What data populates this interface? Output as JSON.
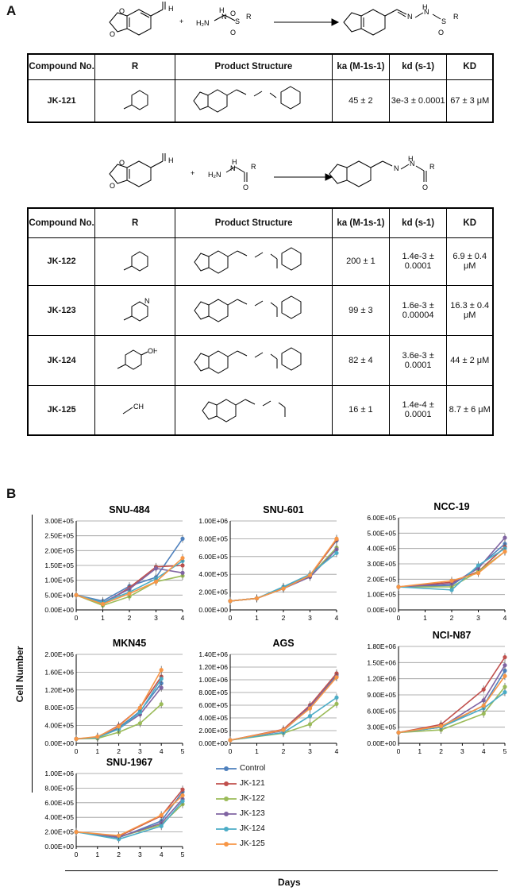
{
  "panel_a_label": "A",
  "panel_b_label": "B",
  "reaction1": {
    "reactant_aldehyde_label": "H",
    "reactant2_text": "H₂N",
    "r_label": "R",
    "plus": "+"
  },
  "reaction2": {
    "reactant_aldehyde_label": "H",
    "reactant2_text": "H₂N",
    "r_label": "R",
    "plus": "+"
  },
  "table_headers": {
    "compound": "Compound No.",
    "r": "R",
    "product": "Product Structure",
    "ka": "ka (M-1s-1)",
    "kd": "kd (s-1)",
    "KD": "KD"
  },
  "table1_rows": [
    {
      "id": "JK-121",
      "r": "phenyl",
      "ka": "45 ± 2",
      "kd": "3e-3 ± 0.0001",
      "KD": "67 ± 3 μM"
    }
  ],
  "table2_rows": [
    {
      "id": "JK-122",
      "r": "phenyl",
      "ka": "200 ± 1",
      "kd": "1.4e-3 ± 0.0001",
      "KD": "6.9 ± 0.4 μM"
    },
    {
      "id": "JK-123",
      "r": "pyridyl",
      "ka": "99 ± 3",
      "kd": "1.6e-3 ± 0.00004",
      "KD": "16.3 ± 0.4 μM"
    },
    {
      "id": "JK-124",
      "r": "hydroxyphenyl",
      "ka": "82 ± 4",
      "kd": "3.6e-3 ± 0.0001",
      "KD": "44 ± 2 μM"
    },
    {
      "id": "JK-125",
      "r": "methyl",
      "ka": "16 ± 1",
      "kd": "1.4e-4 ± 0.0001",
      "KD": "8.7 ± 6 μM"
    }
  ],
  "axis_titles": {
    "y": "Cell Number",
    "x": "Days"
  },
  "legend": [
    "Control",
    "JK-121",
    "JK-122",
    "JK-123",
    "JK-124",
    "JK-125"
  ],
  "colors": {
    "Control": "#4f81bd",
    "JK-121": "#c0504d",
    "JK-122": "#9bbb59",
    "JK-123": "#8064a2",
    "JK-124": "#4bacc6",
    "JK-125": "#f79646"
  },
  "chart_data": [
    {
      "type": "line",
      "title": "SNU-484",
      "x": [
        0,
        1,
        2,
        3,
        4
      ],
      "xlim": [
        0,
        4
      ],
      "ylim": [
        0,
        300000
      ],
      "yticks": [
        "0.00E+00",
        "5.00E+04",
        "1.00E+05",
        "1.50E+05",
        "2.00E+05",
        "2.50E+05",
        "3.00E+05"
      ],
      "xticks": [
        "0",
        "1",
        "2",
        "3",
        "4"
      ],
      "series": [
        {
          "name": "Control",
          "values": [
            50000,
            30000,
            80000,
            110000,
            240000
          ]
        },
        {
          "name": "JK-121",
          "values": [
            50000,
            20000,
            75000,
            145000,
            150000
          ]
        },
        {
          "name": "JK-122",
          "values": [
            50000,
            15000,
            45000,
            95000,
            115000
          ]
        },
        {
          "name": "JK-123",
          "values": [
            50000,
            25000,
            70000,
            140000,
            125000
          ]
        },
        {
          "name": "JK-124",
          "values": [
            50000,
            25000,
            60000,
            105000,
            165000
          ]
        },
        {
          "name": "JK-125",
          "values": [
            50000,
            20000,
            55000,
            95000,
            175000
          ]
        }
      ]
    },
    {
      "type": "line",
      "title": "SNU-601",
      "x": [
        0,
        1,
        2,
        3,
        4
      ],
      "xlim": [
        0,
        4
      ],
      "ylim": [
        0,
        1000000
      ],
      "yticks": [
        "0.00E+00",
        "2.00E+05",
        "4.00E+05",
        "6.00E+05",
        "8.00E+05",
        "1.00E+06"
      ],
      "xticks": [
        "0",
        "1",
        "2",
        "3",
        "4"
      ],
      "series": [
        {
          "name": "Control",
          "values": [
            100000,
            130000,
            250000,
            390000,
            780000
          ]
        },
        {
          "name": "JK-121",
          "values": [
            100000,
            130000,
            240000,
            380000,
            790000
          ]
        },
        {
          "name": "JK-122",
          "values": [
            100000,
            130000,
            240000,
            380000,
            700000
          ]
        },
        {
          "name": "JK-123",
          "values": [
            100000,
            130000,
            240000,
            370000,
            680000
          ]
        },
        {
          "name": "JK-124",
          "values": [
            100000,
            130000,
            260000,
            400000,
            640000
          ]
        },
        {
          "name": "JK-125",
          "values": [
            100000,
            130000,
            240000,
            390000,
            800000
          ]
        }
      ]
    },
    {
      "type": "line",
      "title": "NCC-19",
      "x": [
        0,
        2,
        3,
        4
      ],
      "xlim": [
        0,
        4
      ],
      "ylim": [
        0,
        600000
      ],
      "yticks": [
        "0.00E+00",
        "1.00E+05",
        "2.00E+05",
        "3.00E+05",
        "4.00E+05",
        "5.00E+05",
        "6.00E+05"
      ],
      "xticks": [
        "0",
        "1",
        "2",
        "3",
        "4"
      ],
      "series": [
        {
          "name": "Control",
          "values": [
            150000,
            160000,
            280000,
            430000
          ]
        },
        {
          "name": "JK-121",
          "values": [
            150000,
            180000,
            250000,
            410000
          ]
        },
        {
          "name": "JK-122",
          "values": [
            150000,
            150000,
            250000,
            380000
          ]
        },
        {
          "name": "JK-123",
          "values": [
            150000,
            170000,
            270000,
            470000
          ]
        },
        {
          "name": "JK-124",
          "values": [
            150000,
            130000,
            290000,
            400000
          ]
        },
        {
          "name": "JK-125",
          "values": [
            150000,
            190000,
            240000,
            380000
          ]
        }
      ]
    },
    {
      "type": "line",
      "title": "MKN45",
      "x": [
        0,
        1,
        2,
        3,
        4
      ],
      "xlim": [
        0,
        5
      ],
      "ylim": [
        0,
        2000000
      ],
      "yticks": [
        "0.00E+00",
        "4.00E+05",
        "8.00E+05",
        "1.20E+06",
        "1.60E+06",
        "2.00E+06"
      ],
      "xticks": [
        "0",
        "1",
        "2",
        "3",
        "4",
        "5"
      ],
      "series": [
        {
          "name": "Control",
          "values": [
            100000,
            130000,
            350000,
            720000,
            1350000
          ]
        },
        {
          "name": "JK-121",
          "values": [
            100000,
            140000,
            400000,
            800000,
            1500000
          ]
        },
        {
          "name": "JK-122",
          "values": [
            100000,
            110000,
            250000,
            450000,
            880000
          ]
        },
        {
          "name": "JK-123",
          "values": [
            100000,
            130000,
            330000,
            650000,
            1250000
          ]
        },
        {
          "name": "JK-124",
          "values": [
            100000,
            130000,
            320000,
            700000,
            1450000
          ]
        },
        {
          "name": "JK-125",
          "values": [
            100000,
            150000,
            380000,
            800000,
            1650000
          ]
        }
      ]
    },
    {
      "type": "line",
      "title": "AGS",
      "x": [
        0,
        2,
        3,
        4
      ],
      "xlim": [
        0,
        4
      ],
      "ylim": [
        0,
        1400000
      ],
      "yticks": [
        "0.00E+00",
        "2.00E+05",
        "4.00E+05",
        "6.00E+05",
        "8.00E+05",
        "1.00E+06",
        "1.20E+06",
        "1.40E+06"
      ],
      "xticks": [
        "0",
        "1",
        "2",
        "3",
        "4"
      ],
      "series": [
        {
          "name": "Control",
          "values": [
            50000,
            200000,
            560000,
            1080000
          ]
        },
        {
          "name": "JK-121",
          "values": [
            50000,
            220000,
            600000,
            1100000
          ]
        },
        {
          "name": "JK-122",
          "values": [
            50000,
            160000,
            300000,
            620000
          ]
        },
        {
          "name": "JK-123",
          "values": [
            50000,
            200000,
            580000,
            1050000
          ]
        },
        {
          "name": "JK-124",
          "values": [
            50000,
            170000,
            430000,
            720000
          ]
        },
        {
          "name": "JK-125",
          "values": [
            50000,
            210000,
            550000,
            1040000
          ]
        }
      ]
    },
    {
      "type": "line",
      "title": "NCI-N87",
      "x": [
        0,
        2,
        4,
        5
      ],
      "xlim": [
        0,
        5
      ],
      "ylim": [
        0,
        1800000
      ],
      "yticks": [
        "0.00E+00",
        "3.00E+05",
        "6.00E+05",
        "9.00E+05",
        "1.20E+06",
        "1.50E+06",
        "1.80E+06"
      ],
      "xticks": [
        "0",
        "1",
        "2",
        "3",
        "4",
        "5"
      ],
      "series": [
        {
          "name": "Control",
          "values": [
            200000,
            300000,
            700000,
            1350000
          ]
        },
        {
          "name": "JK-121",
          "values": [
            200000,
            350000,
            1000000,
            1600000
          ]
        },
        {
          "name": "JK-122",
          "values": [
            200000,
            250000,
            550000,
            1050000
          ]
        },
        {
          "name": "JK-123",
          "values": [
            200000,
            300000,
            800000,
            1450000
          ]
        },
        {
          "name": "JK-124",
          "values": [
            200000,
            300000,
            650000,
            950000
          ]
        },
        {
          "name": "JK-125",
          "values": [
            200000,
            320000,
            700000,
            1250000
          ]
        }
      ]
    },
    {
      "type": "line",
      "title": "SNU-1967",
      "x": [
        0,
        2,
        4,
        5
      ],
      "xlim": [
        0,
        5
      ],
      "ylim": [
        0,
        1000000
      ],
      "yticks": [
        "0.00E+00",
        "2.00E+05",
        "4.00E+05",
        "6.00E+05",
        "8.00E+05",
        "1.00E+06"
      ],
      "xticks": [
        "0",
        "1",
        "2",
        "3",
        "4",
        "5"
      ],
      "series": [
        {
          "name": "Control",
          "values": [
            200000,
            120000,
            350000,
            750000
          ]
        },
        {
          "name": "JK-121",
          "values": [
            200000,
            140000,
            420000,
            780000
          ]
        },
        {
          "name": "JK-122",
          "values": [
            200000,
            130000,
            300000,
            580000
          ]
        },
        {
          "name": "JK-123",
          "values": [
            200000,
            130000,
            320000,
            650000
          ]
        },
        {
          "name": "JK-124",
          "values": [
            200000,
            100000,
            280000,
            620000
          ]
        },
        {
          "name": "JK-125",
          "values": [
            200000,
            150000,
            430000,
            700000
          ]
        }
      ]
    }
  ]
}
